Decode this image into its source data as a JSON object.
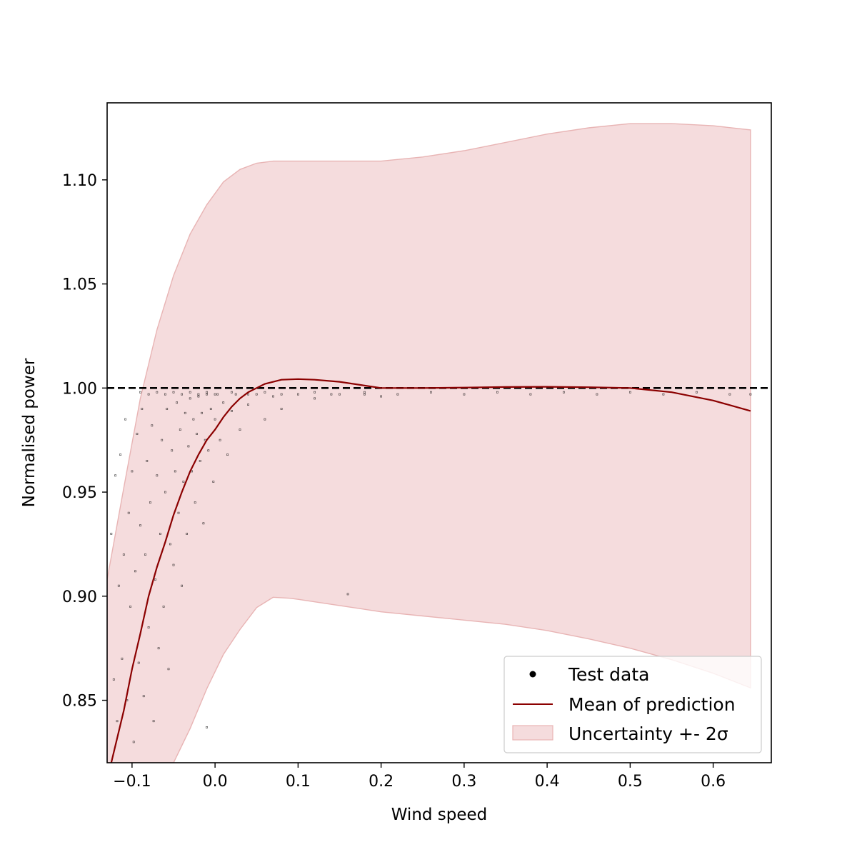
{
  "chart_data": {
    "type": "scatter",
    "title": "",
    "xlabel": "Wind speed",
    "ylabel": "Normalised power",
    "xlim": [
      -0.13,
      0.67
    ],
    "ylim": [
      0.82,
      1.137
    ],
    "xticks": [
      -0.1,
      0.0,
      0.1,
      0.2,
      0.3,
      0.4,
      0.5,
      0.6
    ],
    "xtick_labels": [
      "−0.1",
      "0.0",
      "0.1",
      "0.2",
      "0.3",
      "0.4",
      "0.5",
      "0.6"
    ],
    "yticks": [
      0.85,
      0.9,
      0.95,
      1.0,
      1.05,
      1.1
    ],
    "ytick_labels": [
      "0.85",
      "0.90",
      "0.95",
      "1.00",
      "1.05",
      "1.10"
    ],
    "grid": false,
    "legend_position": "bottom-right",
    "reference_line": {
      "y": 1.0,
      "style": "dashed",
      "color": "#000000"
    },
    "colors": {
      "points": "#000000",
      "mean_line": "#8b0000",
      "band_fill": "#f5dcdd",
      "band_edge": "#e8b4b4",
      "axes": "#000000"
    },
    "legend": [
      {
        "label": "Test data",
        "marker": "dot"
      },
      {
        "label": "Mean of prediction",
        "marker": "line"
      },
      {
        "label": "Uncertainty +- 2σ",
        "marker": "patch"
      }
    ],
    "series": [
      {
        "name": "Mean of prediction",
        "kind": "line",
        "x": [
          -0.125,
          -0.11,
          -0.1,
          -0.09,
          -0.08,
          -0.07,
          -0.06,
          -0.05,
          -0.04,
          -0.03,
          -0.02,
          -0.01,
          0.0,
          0.01,
          0.02,
          0.03,
          0.04,
          0.05,
          0.06,
          0.08,
          0.1,
          0.12,
          0.15,
          0.2,
          0.25,
          0.3,
          0.35,
          0.4,
          0.45,
          0.5,
          0.55,
          0.6,
          0.645
        ],
        "y": [
          0.82,
          0.845,
          0.865,
          0.882,
          0.9,
          0.914,
          0.926,
          0.939,
          0.95,
          0.96,
          0.968,
          0.975,
          0.98,
          0.986,
          0.991,
          0.995,
          0.998,
          1.0,
          1.002,
          1.004,
          1.0043,
          1.004,
          1.003,
          1.0,
          1.0,
          1.0002,
          1.0005,
          1.0006,
          1.0004,
          1.0,
          0.998,
          0.994,
          0.989
        ]
      },
      {
        "name": "Uncertainty +- 2σ",
        "kind": "band",
        "x": [
          -0.13,
          -0.11,
          -0.09,
          -0.07,
          -0.05,
          -0.03,
          -0.01,
          0.01,
          0.03,
          0.05,
          0.07,
          0.09,
          0.1,
          0.15,
          0.2,
          0.25,
          0.3,
          0.35,
          0.4,
          0.45,
          0.5,
          0.55,
          0.6,
          0.645
        ],
        "upper": [
          0.908,
          0.952,
          0.995,
          1.028,
          1.054,
          1.074,
          1.088,
          1.099,
          1.105,
          1.108,
          1.109,
          1.109,
          1.109,
          1.109,
          1.109,
          1.111,
          1.114,
          1.118,
          1.122,
          1.125,
          1.127,
          1.127,
          1.126,
          1.124
        ],
        "lower": [
          0.82,
          0.82,
          0.82,
          0.82,
          0.82,
          0.8365,
          0.8555,
          0.872,
          0.884,
          0.8945,
          0.8995,
          0.899,
          0.8985,
          0.8955,
          0.8925,
          0.8905,
          0.8885,
          0.8865,
          0.8835,
          0.8795,
          0.875,
          0.8695,
          0.863,
          0.856
        ]
      },
      {
        "name": "Test data",
        "kind": "scatter",
        "points": [
          [
            -0.125,
            0.93
          ],
          [
            -0.122,
            0.86
          ],
          [
            -0.12,
            0.958
          ],
          [
            -0.118,
            0.84
          ],
          [
            -0.116,
            0.905
          ],
          [
            -0.114,
            0.968
          ],
          [
            -0.112,
            0.87
          ],
          [
            -0.11,
            0.92
          ],
          [
            -0.108,
            0.985
          ],
          [
            -0.106,
            0.85
          ],
          [
            -0.104,
            0.94
          ],
          [
            -0.102,
            0.895
          ],
          [
            -0.1,
            0.96
          ],
          [
            -0.098,
            0.83
          ],
          [
            -0.096,
            0.912
          ],
          [
            -0.094,
            0.978
          ],
          [
            -0.092,
            0.868
          ],
          [
            -0.09,
            0.934
          ],
          [
            -0.088,
            0.99
          ],
          [
            -0.086,
            0.852
          ],
          [
            -0.084,
            0.92
          ],
          [
            -0.082,
            0.965
          ],
          [
            -0.08,
            0.885
          ],
          [
            -0.078,
            0.945
          ],
          [
            -0.076,
            0.982
          ],
          [
            -0.074,
            0.84
          ],
          [
            -0.072,
            0.908
          ],
          [
            -0.07,
            0.958
          ],
          [
            -0.068,
            0.875
          ],
          [
            -0.066,
            0.93
          ],
          [
            -0.064,
            0.975
          ],
          [
            -0.062,
            0.895
          ],
          [
            -0.06,
            0.95
          ],
          [
            -0.058,
            0.99
          ],
          [
            -0.056,
            0.865
          ],
          [
            -0.054,
            0.925
          ],
          [
            -0.052,
            0.97
          ],
          [
            -0.05,
            0.915
          ],
          [
            -0.048,
            0.96
          ],
          [
            -0.046,
            0.993
          ],
          [
            -0.044,
            0.94
          ],
          [
            -0.042,
            0.98
          ],
          [
            -0.04,
            0.905
          ],
          [
            -0.038,
            0.955
          ],
          [
            -0.036,
            0.988
          ],
          [
            -0.034,
            0.93
          ],
          [
            -0.032,
            0.972
          ],
          [
            -0.03,
            0.995
          ],
          [
            -0.028,
            0.96
          ],
          [
            -0.026,
            0.985
          ],
          [
            -0.024,
            0.945
          ],
          [
            -0.022,
            0.978
          ],
          [
            -0.02,
            0.996
          ],
          [
            -0.018,
            0.965
          ],
          [
            -0.016,
            0.988
          ],
          [
            -0.014,
            0.935
          ],
          [
            -0.012,
            0.975
          ],
          [
            -0.01,
            0.997
          ],
          [
            -0.008,
            0.97
          ],
          [
            -0.005,
            0.99
          ],
          [
            -0.002,
            0.955
          ],
          [
            0.0,
            0.985
          ],
          [
            0.003,
            0.997
          ],
          [
            0.006,
            0.975
          ],
          [
            0.01,
            0.993
          ],
          [
            0.015,
            0.968
          ],
          [
            0.02,
            0.989
          ],
          [
            0.025,
            0.997
          ],
          [
            0.03,
            0.98
          ],
          [
            0.04,
            0.992
          ],
          [
            0.05,
            0.997
          ],
          [
            0.06,
            0.985
          ],
          [
            0.07,
            0.996
          ],
          [
            0.08,
            0.99
          ],
          [
            0.1,
            0.997
          ],
          [
            0.12,
            0.995
          ],
          [
            0.15,
            0.997
          ],
          [
            0.16,
            0.901
          ],
          [
            0.18,
            0.997
          ],
          [
            0.2,
            0.996
          ],
          [
            -0.09,
            0.998
          ],
          [
            -0.08,
            0.997
          ],
          [
            -0.07,
            0.998
          ],
          [
            -0.06,
            0.997
          ],
          [
            -0.05,
            0.998
          ],
          [
            -0.04,
            0.997
          ],
          [
            -0.03,
            0.998
          ],
          [
            -0.02,
            0.997
          ],
          [
            -0.01,
            0.998
          ],
          [
            0.0,
            0.997
          ],
          [
            0.02,
            0.998
          ],
          [
            0.04,
            0.997
          ],
          [
            0.06,
            0.998
          ],
          [
            0.08,
            0.997
          ],
          [
            0.12,
            0.998
          ],
          [
            0.14,
            0.997
          ],
          [
            0.18,
            0.998
          ],
          [
            0.22,
            0.997
          ],
          [
            0.26,
            0.998
          ],
          [
            0.3,
            0.997
          ],
          [
            0.34,
            0.998
          ],
          [
            0.38,
            0.997
          ],
          [
            0.42,
            0.998
          ],
          [
            0.46,
            0.997
          ],
          [
            0.5,
            0.998
          ],
          [
            0.54,
            0.997
          ],
          [
            0.58,
            0.998
          ],
          [
            0.62,
            0.997
          ],
          [
            0.645,
            0.997
          ],
          [
            -0.01,
            0.837
          ]
        ]
      }
    ]
  }
}
